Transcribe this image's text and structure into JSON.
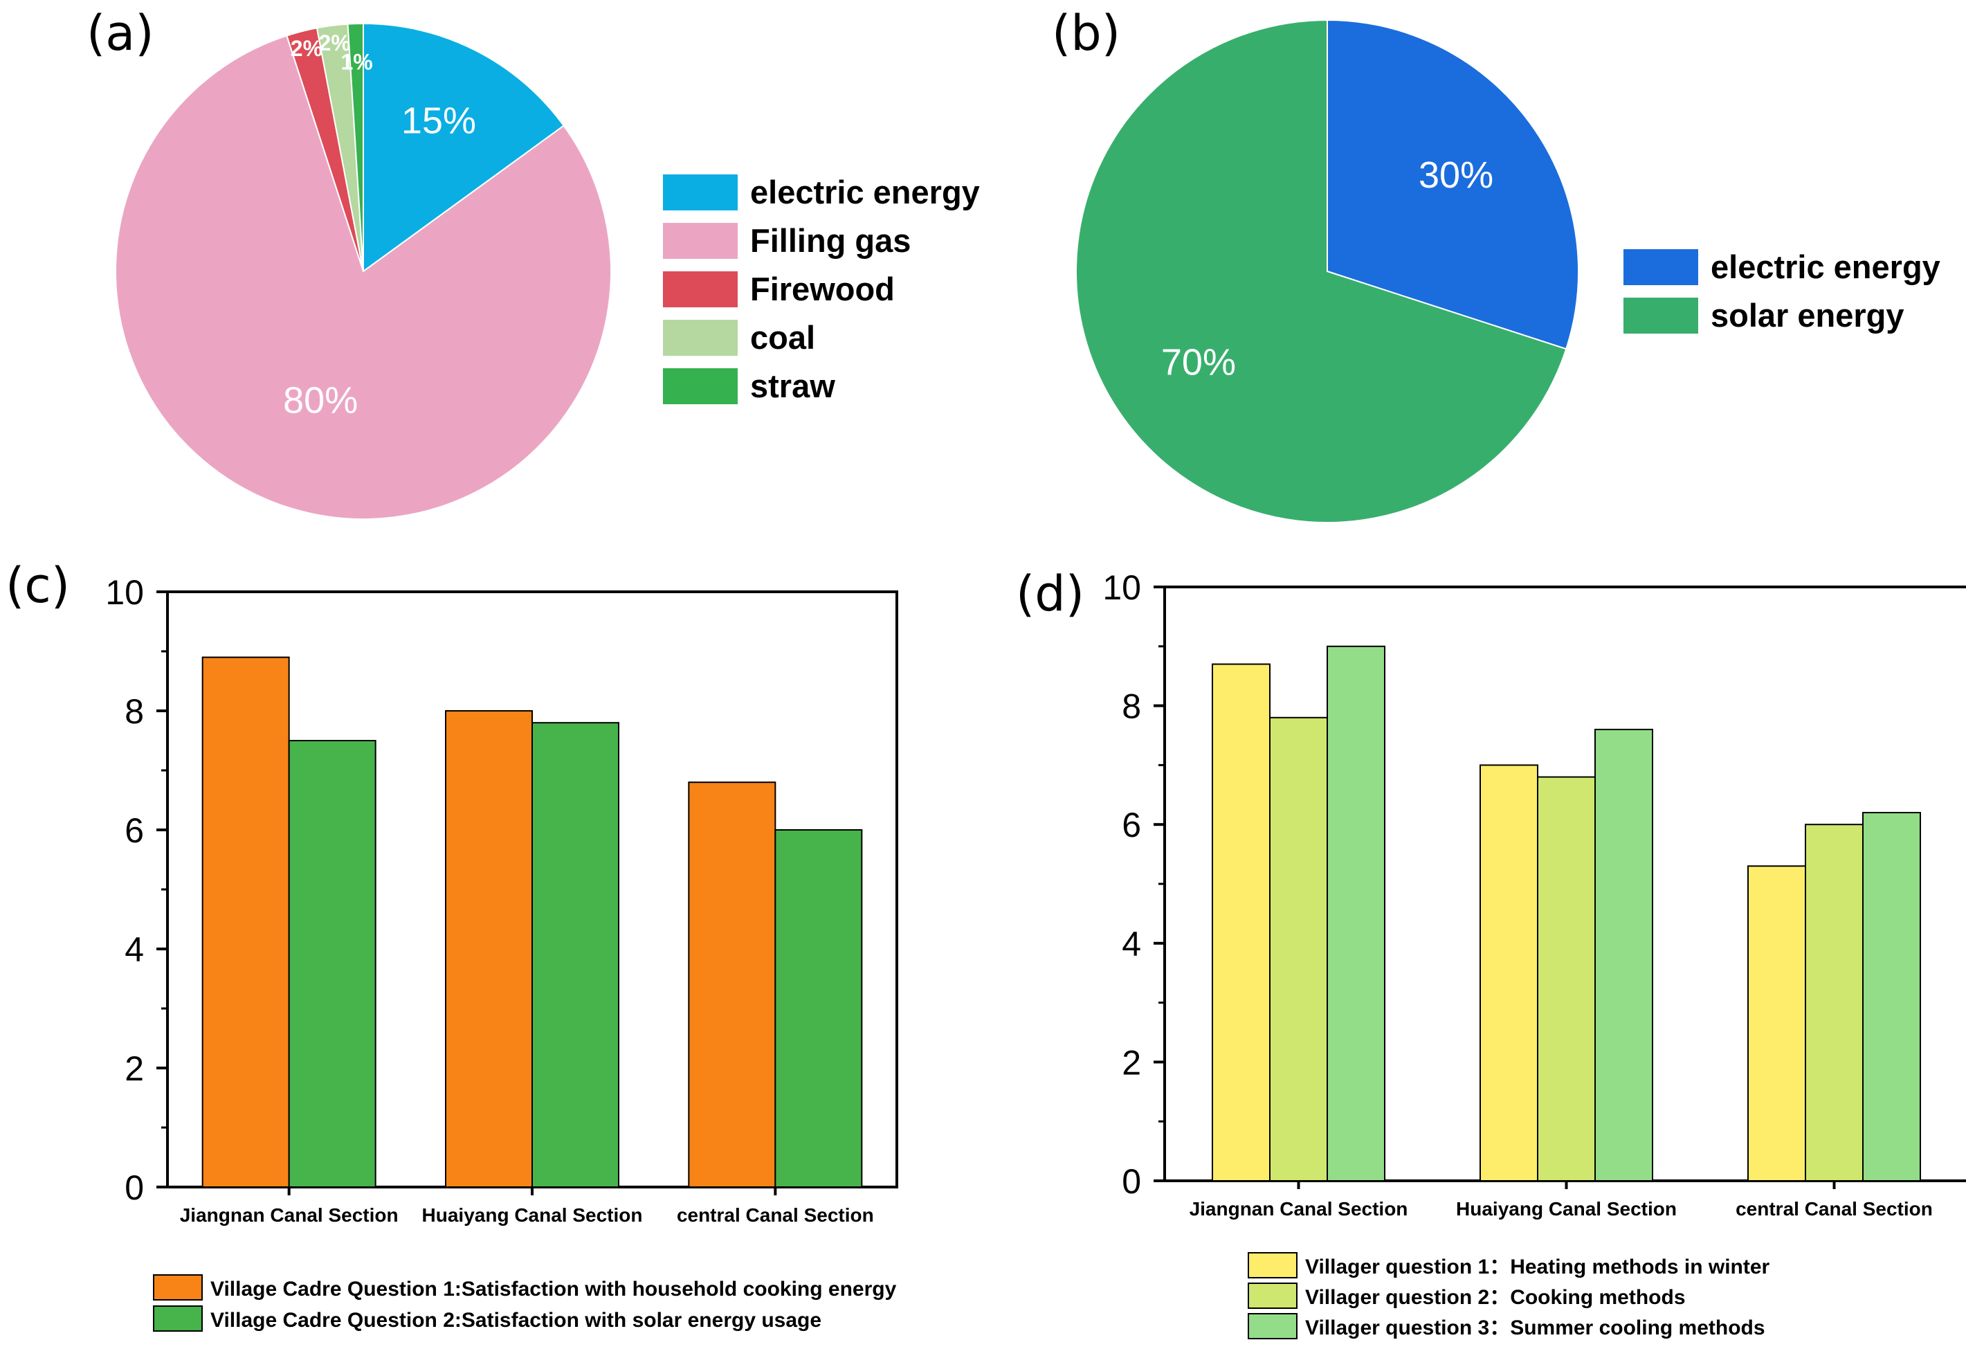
{
  "colors": {
    "electric_a": "#0aaee3",
    "filling_gas": "#eba5c3",
    "firewood": "#dc4b57",
    "coal": "#b5d7a0",
    "straw": "#35b14f",
    "electric_b": "#1b6ddd",
    "solar_b": "#38ae6d",
    "q1_cadre": "#f88316",
    "q2_cadre": "#47b34b",
    "v_q1": "#fded6a",
    "v_q2": "#cfe76e",
    "v_q3": "#93dd88"
  },
  "chart_data": [
    {
      "panel": "(a)",
      "type": "pie",
      "slices": [
        {
          "label": "electric energy",
          "value": 15,
          "pct_label": "15%",
          "color": "#0aaee3"
        },
        {
          "label": "Filling gas",
          "value": 80,
          "pct_label": "80%",
          "color": "#eba5c3"
        },
        {
          "label": "Firewood",
          "value": 2,
          "pct_label": "2%",
          "color": "#dc4b57"
        },
        {
          "label": "coal",
          "value": 2,
          "pct_label": "2%",
          "color": "#b5d7a0"
        },
        {
          "label": "straw",
          "value": 1,
          "pct_label": "1%",
          "color": "#35b14f"
        }
      ],
      "legend": [
        "electric energy",
        "Filling gas",
        "Firewood",
        "coal",
        "straw"
      ],
      "legend_position": "right"
    },
    {
      "panel": "(b)",
      "type": "pie",
      "slices": [
        {
          "label": "electric energy",
          "value": 30,
          "pct_label": "30%",
          "color": "#1b6ddd"
        },
        {
          "label": "solar energy",
          "value": 70,
          "pct_label": "70%",
          "color": "#38ae6d"
        }
      ],
      "legend": [
        "electric energy",
        "solar energy"
      ],
      "legend_position": "right"
    },
    {
      "panel": "(c)",
      "type": "bar",
      "categories": [
        "Jiangnan Canal Section",
        "Huaiyang Canal Section",
        "central Canal Section"
      ],
      "series": [
        {
          "name": "Village Cadre Question 1:Satisfaction with household cooking energy",
          "values": [
            8.9,
            8.0,
            6.8
          ],
          "color": "#f88316"
        },
        {
          "name": "Village Cadre Question 2:Satisfaction with solar energy usage",
          "values": [
            7.5,
            7.8,
            6.0
          ],
          "color": "#47b34b"
        }
      ],
      "ylim": [
        0,
        10
      ],
      "yticks": [
        "0",
        "2",
        "4",
        "6",
        "8",
        "10"
      ],
      "xlabel": "",
      "ylabel": "",
      "legend_position": "bottom"
    },
    {
      "panel": "(d)",
      "type": "bar",
      "categories": [
        "Jiangnan Canal Section",
        "Huaiyang Canal Section",
        "central Canal Section"
      ],
      "series": [
        {
          "name": "Villager question 1：Heating methods in winter",
          "values": [
            8.7,
            7.0,
            5.3
          ],
          "color": "#fded6a"
        },
        {
          "name": "Villager question 2：Cooking methods",
          "values": [
            7.8,
            6.8,
            6.0
          ],
          "color": "#cfe76e"
        },
        {
          "name": "Villager question 3：Summer cooling methods",
          "values": [
            9.0,
            7.6,
            6.2
          ],
          "color": "#93dd88"
        }
      ],
      "ylim": [
        0,
        10
      ],
      "yticks": [
        "0",
        "2",
        "4",
        "6",
        "8",
        "10"
      ],
      "xlabel": "",
      "ylabel": "",
      "legend_position": "bottom"
    }
  ]
}
